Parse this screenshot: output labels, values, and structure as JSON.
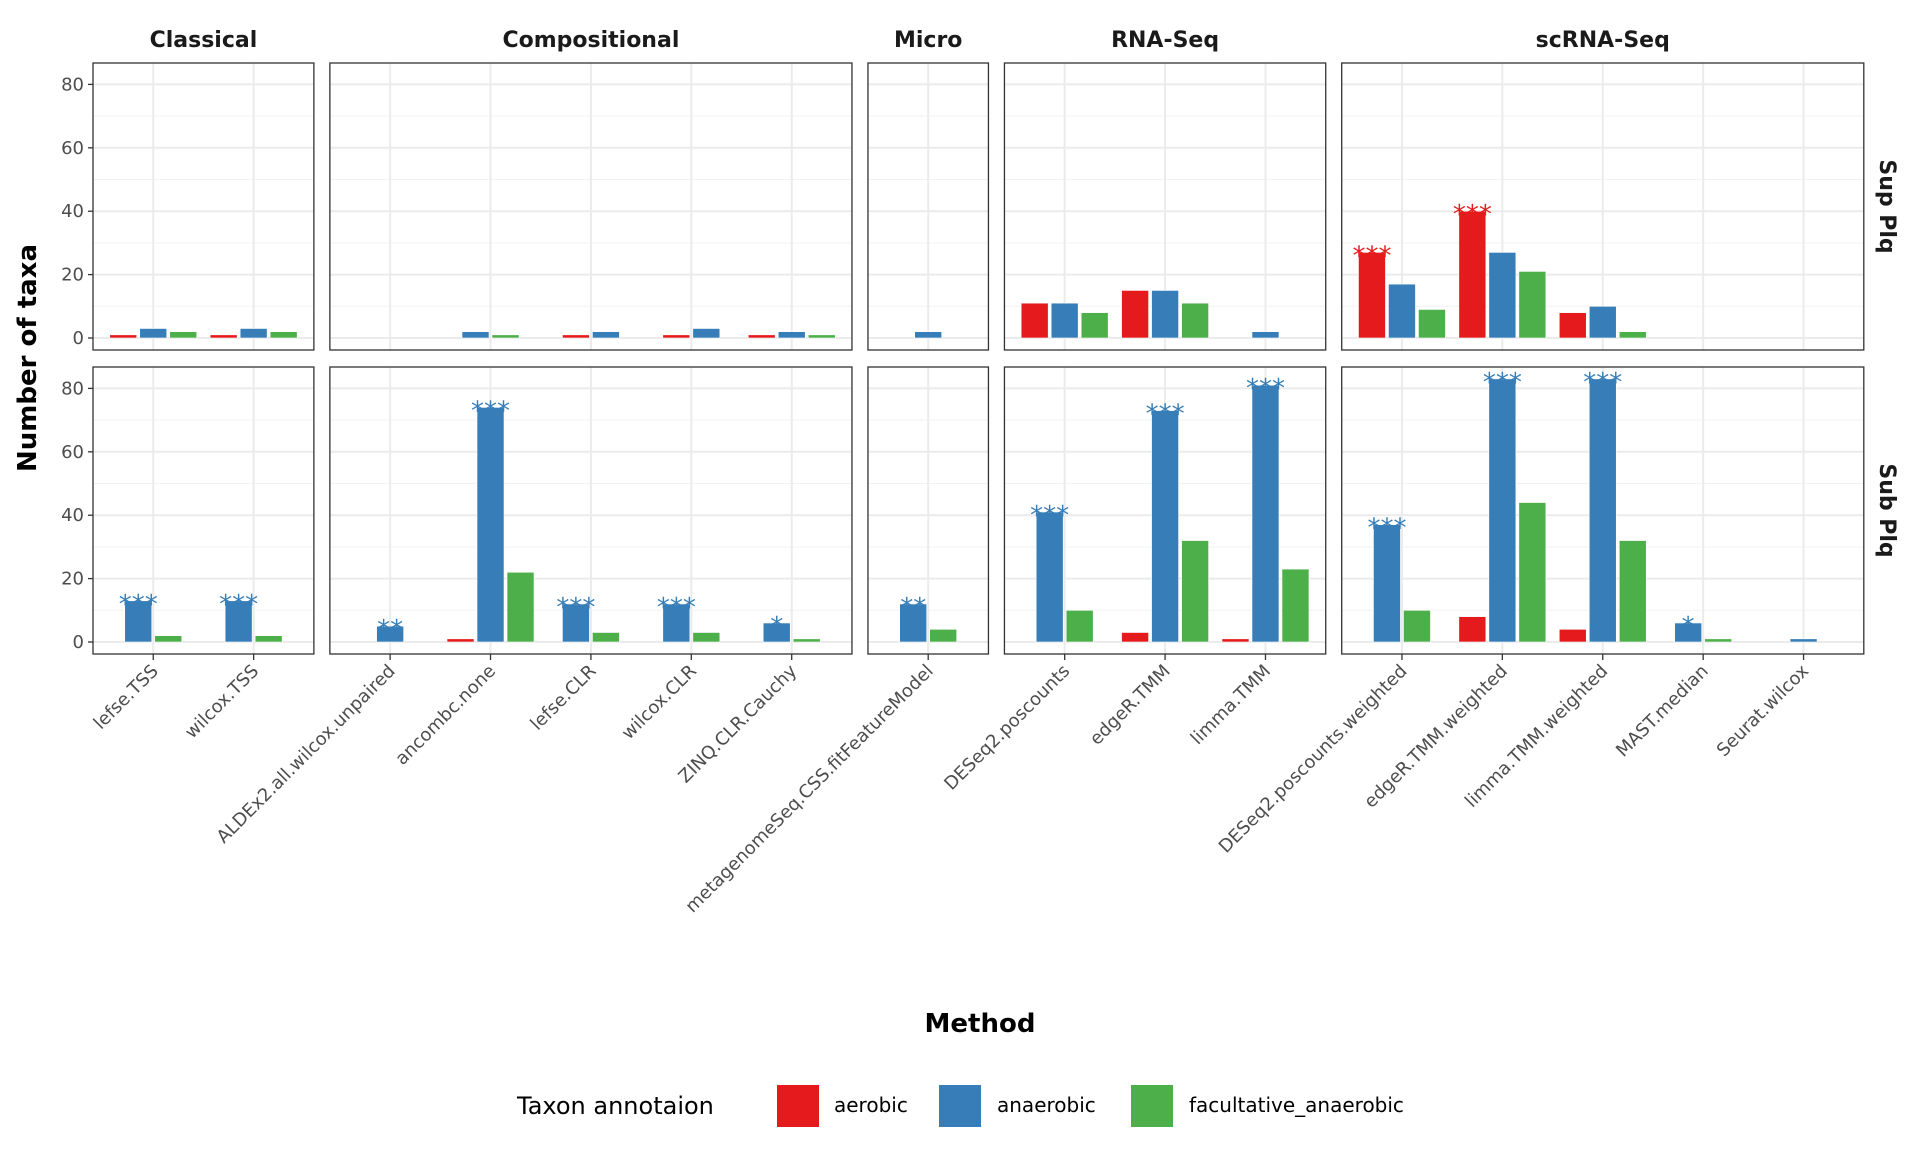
{
  "chart_data": {
    "type": "bar",
    "xlabel": "Method",
    "ylabel": "Number of taxa",
    "ylim": [
      0,
      80
    ],
    "yticks": [
      0,
      20,
      40,
      60,
      80
    ],
    "grid": true,
    "legend": {
      "title": "Taxon annotaion",
      "placement": "bottom"
    },
    "series_names": [
      "aerobic",
      "anaerobic",
      "facultative_anaerobic"
    ],
    "colors": {
      "aerobic": "#E41A1C",
      "anaerobic": "#377EB8",
      "facultative_anaerobic": "#4DAF4A"
    },
    "rows": [
      "Sup Plq",
      "Sub Plq"
    ],
    "facets": [
      {
        "name": "Classical",
        "methods": [
          "lefse.TSS",
          "wilcox.TSS"
        ]
      },
      {
        "name": "Compositional",
        "methods": [
          "ALDEx2.all.wilcox.unpaired",
          "ancombc.none",
          "lefse.CLR",
          "wilcox.CLR",
          "ZINQ.CLR.Cauchy"
        ]
      },
      {
        "name": "Micro",
        "methods": [
          "metagenomeSeq.CSS.fitFeatureModel"
        ]
      },
      {
        "name": "RNA-Seq",
        "methods": [
          "DESeq2.poscounts",
          "edgeR.TMM",
          "limma.TMM"
        ]
      },
      {
        "name": "scRNA-Seq",
        "methods": [
          "DESeq2.poscounts.weighted",
          "edgeR.TMM.weighted",
          "limma.TMM.weighted",
          "MAST.median",
          "Seurat.wilcox"
        ]
      }
    ],
    "values": {
      "Sup Plq": {
        "lefse.TSS": [
          1,
          3,
          2
        ],
        "wilcox.TSS": [
          1,
          3,
          2
        ],
        "ALDEx2.all.wilcox.unpaired": [
          0,
          0,
          0
        ],
        "ancombc.none": [
          0,
          2,
          1
        ],
        "lefse.CLR": [
          1,
          2,
          0
        ],
        "wilcox.CLR": [
          1,
          3,
          0
        ],
        "ZINQ.CLR.Cauchy": [
          1,
          2,
          1
        ],
        "metagenomeSeq.CSS.fitFeatureModel": [
          0,
          2,
          0
        ],
        "DESeq2.poscounts": [
          11,
          11,
          8
        ],
        "edgeR.TMM": [
          15,
          15,
          11
        ],
        "limma.TMM": [
          0,
          2,
          0
        ],
        "DESeq2.poscounts.weighted": [
          27,
          17,
          9
        ],
        "edgeR.TMM.weighted": [
          40,
          27,
          21
        ],
        "limma.TMM.weighted": [
          8,
          10,
          2
        ],
        "MAST.median": [
          0,
          0,
          0
        ],
        "Seurat.wilcox": [
          0,
          0,
          0
        ]
      },
      "Sub Plq": {
        "lefse.TSS": [
          0,
          13,
          2
        ],
        "wilcox.TSS": [
          0,
          13,
          2
        ],
        "ALDEx2.all.wilcox.unpaired": [
          0,
          5,
          0
        ],
        "ancombc.none": [
          1,
          74,
          22
        ],
        "lefse.CLR": [
          0,
          12,
          3
        ],
        "wilcox.CLR": [
          0,
          12,
          3
        ],
        "ZINQ.CLR.Cauchy": [
          0,
          6,
          1
        ],
        "metagenomeSeq.CSS.fitFeatureModel": [
          0,
          12,
          4
        ],
        "DESeq2.poscounts": [
          0,
          41,
          10
        ],
        "edgeR.TMM": [
          3,
          73,
          32
        ],
        "limma.TMM": [
          1,
          81,
          23
        ],
        "DESeq2.poscounts.weighted": [
          0,
          37,
          10
        ],
        "edgeR.TMM.weighted": [
          8,
          83,
          44
        ],
        "limma.TMM.weighted": [
          4,
          83,
          32
        ],
        "MAST.median": [
          0,
          6,
          1
        ],
        "Seurat.wilcox": [
          0,
          1,
          0
        ]
      }
    },
    "significance": {
      "Sup Plq": {
        "DESeq2.poscounts.weighted": [
          "***",
          "",
          ""
        ],
        "edgeR.TMM.weighted": [
          "***",
          "",
          ""
        ]
      },
      "Sub Plq": {
        "lefse.TSS": [
          "",
          "***",
          ""
        ],
        "wilcox.TSS": [
          "",
          "***",
          ""
        ],
        "ALDEx2.all.wilcox.unpaired": [
          "",
          "**",
          ""
        ],
        "ancombc.none": [
          "",
          "***",
          ""
        ],
        "lefse.CLR": [
          "",
          "***",
          ""
        ],
        "wilcox.CLR": [
          "",
          "***",
          ""
        ],
        "ZINQ.CLR.Cauchy": [
          "",
          "*",
          ""
        ],
        "metagenomeSeq.CSS.fitFeatureModel": [
          "",
          "**",
          ""
        ],
        "DESeq2.poscounts": [
          "",
          "***",
          ""
        ],
        "edgeR.TMM": [
          "",
          "***",
          ""
        ],
        "limma.TMM": [
          "",
          "***",
          ""
        ],
        "DESeq2.poscounts.weighted": [
          "",
          "***",
          ""
        ],
        "edgeR.TMM.weighted": [
          "",
          "***",
          ""
        ],
        "limma.TMM.weighted": [
          "",
          "***",
          ""
        ],
        "MAST.median": [
          "",
          "*",
          ""
        ]
      }
    }
  }
}
